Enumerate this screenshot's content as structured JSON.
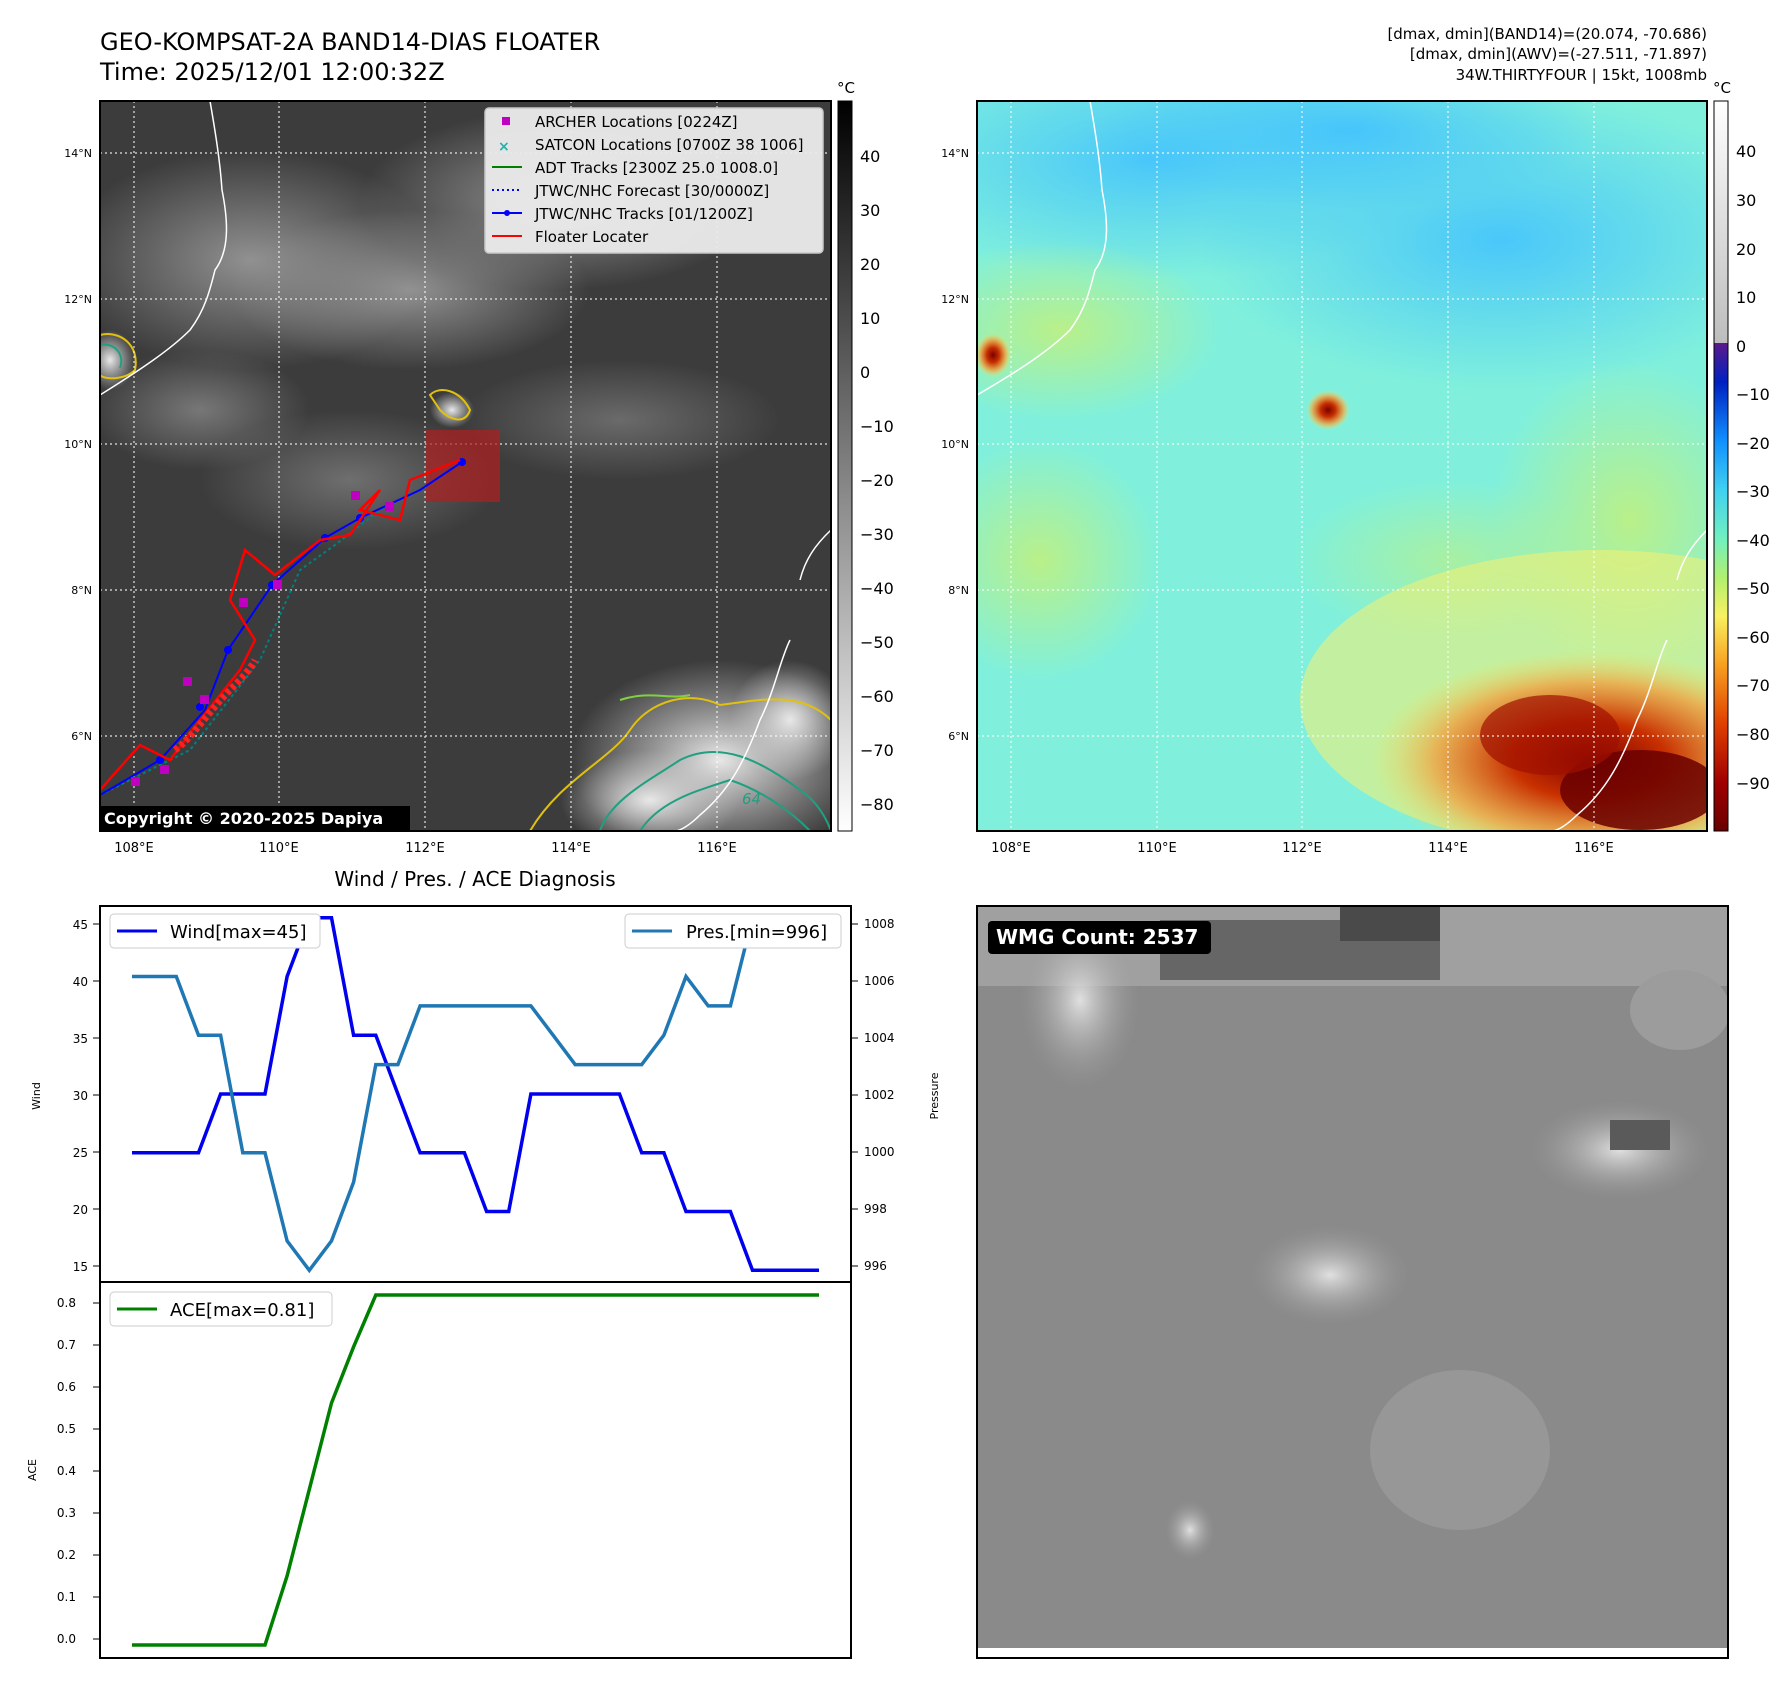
{
  "header": {
    "title_line1": "GEO-KOMPSAT-2A BAND14-DIAS FLOATER",
    "title_line2": "Time: 2025/12/01 12:00:32Z",
    "info_line1": "[dmax, dmin](BAND14)=(20.074, -70.686)",
    "info_line2": "[dmax, dmin](AWV)=(-27.511, -71.897)",
    "info_line3": "34W.THIRTYFOUR | 15kt, 1008mb"
  },
  "map": {
    "lon_ticks": [
      "108°E",
      "110°E",
      "112°E",
      "114°E",
      "116°E"
    ],
    "lat_ticks": [
      "14°N",
      "12°N",
      "10°N",
      "8°N",
      "6°N"
    ],
    "copyright": "Copyright © 2020-2025 Dapiya",
    "contour_label": "64",
    "legend": [
      {
        "label": "ARCHER Locations [0224Z]",
        "marker": "square",
        "color": "#c000c0"
      },
      {
        "label": "SATCON Locations [0700Z 38 1006]",
        "marker": "x",
        "color": "#20b2aa"
      },
      {
        "label": "ADT Tracks [2300Z 25.0 1008.0]",
        "marker": "line",
        "color": "#008000"
      },
      {
        "label": "JTWC/NHC Forecast [30/0000Z]",
        "marker": "dotted",
        "color": "#0000ff"
      },
      {
        "label": "JTWC/NHC Tracks [01/1200Z]",
        "marker": "line-dot",
        "color": "#0000ff"
      },
      {
        "label": "Floater Locater",
        "marker": "line",
        "color": "#ff0000"
      }
    ]
  },
  "colorbar_left": {
    "unit": "°C",
    "ticks": [
      "40",
      "30",
      "20",
      "10",
      "0",
      "−10",
      "−20",
      "−30",
      "−40",
      "−50",
      "−60",
      "−70",
      "−80"
    ]
  },
  "colorbar_right": {
    "unit": "°C",
    "ticks": [
      "40",
      "30",
      "20",
      "10",
      "0",
      "−10",
      "−20",
      "−30",
      "−40",
      "−50",
      "−60",
      "−70",
      "−80",
      "−90"
    ]
  },
  "diagnosis": {
    "title": "Wind / Pres. / ACE Diagnosis",
    "wind_ylabel": "Wind",
    "pres_ylabel": "Pressure",
    "ace_ylabel": "ACE",
    "wind_legend": "Wind[max=45]",
    "pres_legend": "Pres.[min=996]",
    "ace_legend": "ACE[max=0.81]",
    "wind_ticks": [
      "45",
      "40",
      "35",
      "30",
      "25",
      "20",
      "15"
    ],
    "pres_ticks": [
      "1008",
      "1006",
      "1004",
      "1002",
      "1000",
      "998",
      "996"
    ],
    "ace_ticks": [
      "0.8",
      "0.7",
      "0.6",
      "0.5",
      "0.4",
      "0.3",
      "0.2",
      "0.1",
      "0.0"
    ]
  },
  "wmg": {
    "label": "WMG Count: 2537"
  },
  "chart_data": [
    {
      "type": "line",
      "title": "Wind / Pres. / ACE Diagnosis",
      "x": [
        0,
        1,
        2,
        3,
        4,
        5,
        6,
        7,
        8,
        9,
        10,
        11,
        12,
        13,
        14,
        15,
        16,
        17,
        18,
        19,
        20,
        21,
        22,
        23,
        24,
        25,
        26,
        27,
        28,
        29,
        30,
        31
      ],
      "series": [
        {
          "name": "Wind[max=45]",
          "axis": "left",
          "ylim": [
            14,
            46
          ],
          "color": "#0000ee",
          "values": [
            25,
            25,
            25,
            25,
            30,
            30,
            30,
            40,
            45,
            45,
            35,
            35,
            30,
            25,
            25,
            25,
            20,
            20,
            30,
            30,
            30,
            30,
            30,
            25,
            25,
            20,
            20,
            20,
            15,
            15,
            15,
            15
          ]
        },
        {
          "name": "Pres.[min=996]",
          "axis": "right",
          "ylim": [
            995.6,
            1008.4
          ],
          "color": "#1f77b4",
          "values": [
            1006,
            1006,
            1006,
            1004,
            1004,
            1000,
            1000,
            997,
            996,
            997,
            999,
            1003,
            1003,
            1005,
            1005,
            1005,
            1005,
            1005,
            1005,
            1004,
            1003,
            1003,
            1003,
            1003,
            1004,
            1006,
            1005,
            1005,
            1008,
            1008,
            1008,
            1008
          ]
        }
      ]
    },
    {
      "type": "line",
      "x": [
        0,
        1,
        2,
        3,
        4,
        5,
        6,
        7,
        8,
        9,
        10,
        11,
        12,
        13,
        14,
        15,
        16,
        17,
        18,
        19,
        20,
        21,
        22,
        23,
        24,
        25,
        26,
        27,
        28,
        29,
        30,
        31
      ],
      "ylim": [
        -0.03,
        0.84
      ],
      "series": [
        {
          "name": "ACE[max=0.81]",
          "color": "#008000",
          "values": [
            0,
            0,
            0,
            0,
            0,
            0,
            0,
            0.16,
            0.36,
            0.56,
            0.69,
            0.81,
            0.81,
            0.81,
            0.81,
            0.81,
            0.81,
            0.81,
            0.81,
            0.81,
            0.81,
            0.81,
            0.81,
            0.81,
            0.81,
            0.81,
            0.81,
            0.81,
            0.81,
            0.81,
            0.81,
            0.81
          ]
        }
      ]
    }
  ]
}
